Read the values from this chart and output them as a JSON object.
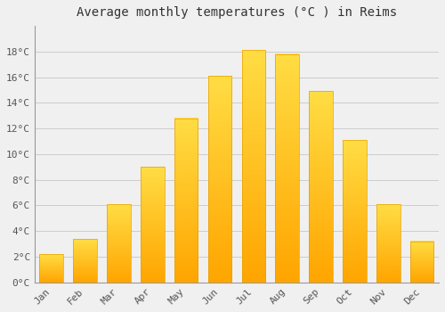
{
  "title": "Average monthly temperatures (°C ) in Reims",
  "months": [
    "Jan",
    "Feb",
    "Mar",
    "Apr",
    "May",
    "Jun",
    "Jul",
    "Aug",
    "Sep",
    "Oct",
    "Nov",
    "Dec"
  ],
  "values": [
    2.2,
    3.4,
    6.1,
    9.0,
    12.8,
    16.1,
    18.1,
    17.8,
    14.9,
    11.1,
    6.1,
    3.2
  ],
  "ylim": [
    0,
    20
  ],
  "yticks": [
    0,
    2,
    4,
    6,
    8,
    10,
    12,
    14,
    16,
    18
  ],
  "ytick_labels": [
    "0°C",
    "2°C",
    "4°C",
    "6°C",
    "8°C",
    "10°C",
    "12°C",
    "14°C",
    "16°C",
    "18°C"
  ],
  "background_color": "#F0F0F0",
  "grid_color": "#CCCCCC",
  "bar_color_bottom": "#FFA500",
  "bar_color_top": "#FFD966",
  "bar_edge_color": "#E8A000",
  "title_fontsize": 10,
  "tick_fontsize": 8,
  "font_family": "monospace"
}
